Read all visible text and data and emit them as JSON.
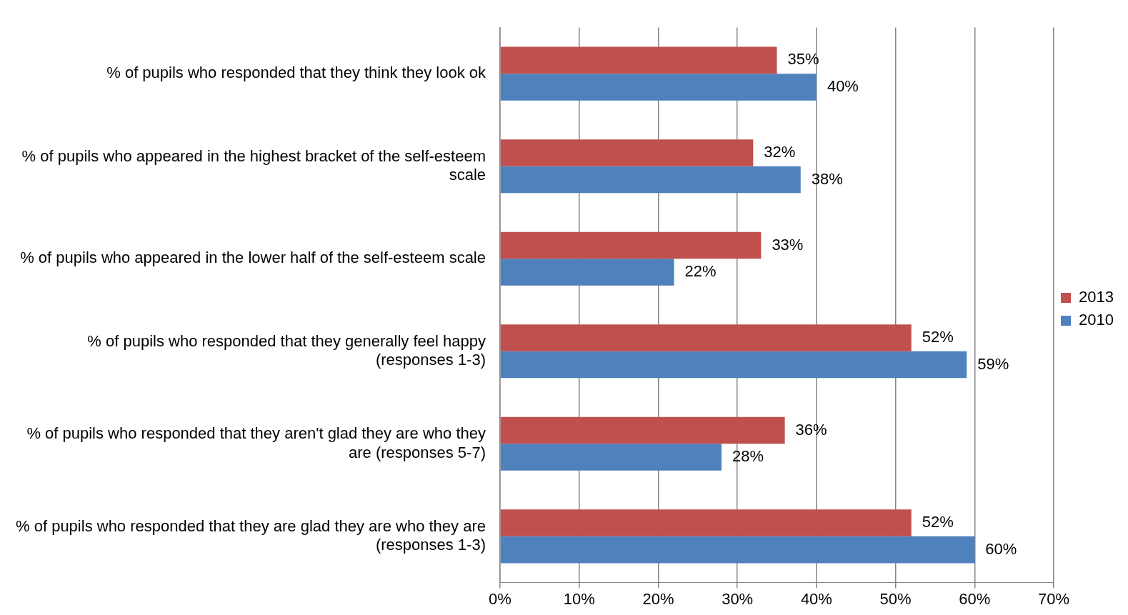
{
  "chart_data": {
    "type": "bar",
    "orientation": "horizontal",
    "categories": [
      "% of pupils who responded that they think they look ok",
      "% of pupils who appeared in the highest bracket of the self-esteem scale",
      "% of pupils who appeared in the lower half of the self-esteem scale",
      "% of pupils who responded that they generally feel happy (responses 1-3)",
      "% of pupils who responded that they aren't glad they are who they are (responses 5-7)",
      "% of pupils who responded that they are glad they are who they are (responses 1-3)"
    ],
    "series": [
      {
        "name": "2013",
        "color": "#c0504d",
        "values": [
          35,
          32,
          33,
          52,
          36,
          52
        ],
        "value_labels": [
          "35%",
          "32%",
          "33%",
          "52%",
          "36%",
          "52%"
        ]
      },
      {
        "name": "2010",
        "color": "#4f81bd",
        "values": [
          40,
          38,
          22,
          59,
          28,
          60
        ],
        "value_labels": [
          "40%",
          "38%",
          "22%",
          "59%",
          "28%",
          "60%"
        ]
      }
    ],
    "xlim": [
      0,
      70
    ],
    "xticks": [
      {
        "value": 0,
        "label": "0%"
      },
      {
        "value": 10,
        "label": "10%"
      },
      {
        "value": 20,
        "label": "20%"
      },
      {
        "value": 30,
        "label": "30%"
      },
      {
        "value": 40,
        "label": "40%"
      },
      {
        "value": 50,
        "label": "50%"
      },
      {
        "value": 60,
        "label": "60%"
      },
      {
        "value": 70,
        "label": "70%"
      }
    ],
    "grid": "x",
    "legend": "right"
  }
}
